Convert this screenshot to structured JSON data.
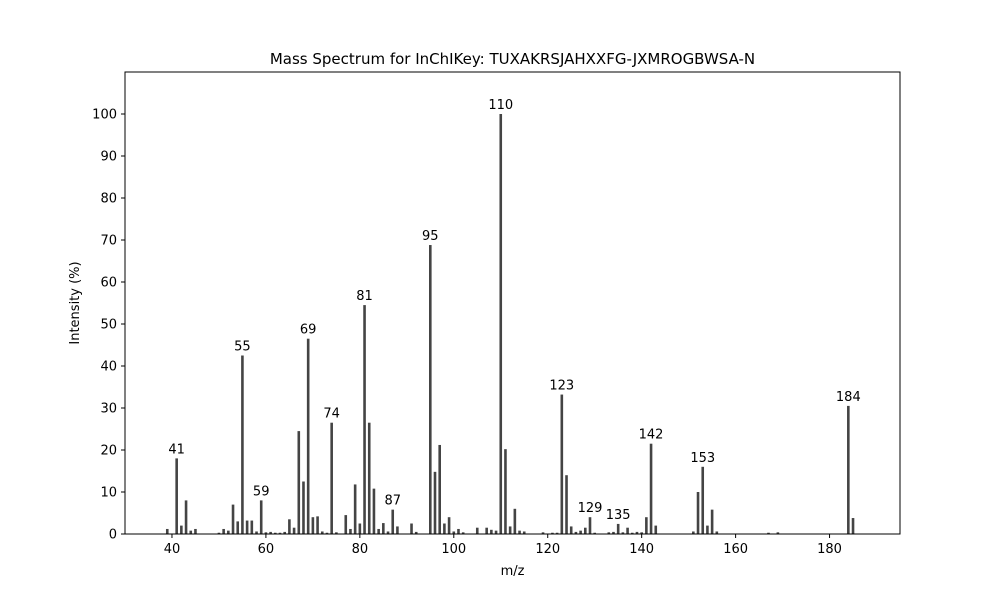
{
  "chart_data": {
    "type": "bar",
    "title": "Mass Spectrum for InChIKey: TUXAKRSJAHXXFG-JXMROGBWSA-N",
    "xlabel": "m/z",
    "ylabel": "Intensity (%)",
    "xlim": [
      30,
      195
    ],
    "ylim": [
      0,
      110
    ],
    "xticks": [
      40,
      60,
      80,
      100,
      120,
      140,
      160,
      180
    ],
    "yticks": [
      0,
      10,
      20,
      30,
      40,
      50,
      60,
      70,
      80,
      90,
      100
    ],
    "grid": false,
    "bar_color": "#444444",
    "x": [
      39,
      41,
      42,
      43,
      44,
      45,
      50,
      51,
      52,
      53,
      54,
      55,
      56,
      57,
      58,
      59,
      60,
      61,
      62,
      63,
      64,
      65,
      66,
      67,
      68,
      69,
      70,
      71,
      72,
      73,
      74,
      75,
      77,
      78,
      79,
      80,
      81,
      82,
      83,
      84,
      85,
      86,
      87,
      88,
      91,
      92,
      95,
      96,
      97,
      98,
      99,
      100,
      101,
      102,
      105,
      107,
      108,
      109,
      110,
      111,
      112,
      113,
      114,
      115,
      119,
      121,
      122,
      123,
      124,
      125,
      126,
      127,
      128,
      129,
      130,
      133,
      134,
      135,
      136,
      137,
      138,
      139,
      140,
      141,
      142,
      143,
      151,
      152,
      153,
      154,
      155,
      156,
      167,
      169,
      184,
      185
    ],
    "values": [
      1.2,
      18,
      2,
      8,
      0.8,
      1.2,
      0.3,
      1.2,
      0.8,
      7,
      3,
      42.5,
      3.2,
      3.2,
      0.6,
      8,
      0.4,
      0.5,
      0.3,
      0.3,
      0.5,
      3.5,
      1.5,
      24.5,
      12.5,
      46.5,
      4,
      4.2,
      0.6,
      0.3,
      26.5,
      0.4,
      4.5,
      1.2,
      11.8,
      2.5,
      54.5,
      26.5,
      10.8,
      1.2,
      2.6,
      0.6,
      5.8,
      1.8,
      2.5,
      0.5,
      68.8,
      14.8,
      21.2,
      2.5,
      4,
      0.6,
      1.2,
      0.4,
      1.5,
      1.5,
      1,
      0.8,
      100,
      20.2,
      1.8,
      6,
      0.8,
      0.6,
      0.4,
      0.3,
      0.3,
      33.2,
      14,
      1.8,
      0.5,
      0.8,
      1.5,
      4,
      0.3,
      0.4,
      0.5,
      2.4,
      0.4,
      1.5,
      0.3,
      0.5,
      0.4,
      4,
      21.5,
      2,
      0.6,
      10,
      16,
      2,
      5.8,
      0.6,
      0.3,
      0.4,
      30.5,
      3.8
    ],
    "annotations": [
      {
        "x": 41,
        "y": 18,
        "text": "41"
      },
      {
        "x": 55,
        "y": 42.5,
        "text": "55"
      },
      {
        "x": 59,
        "y": 8,
        "text": "59"
      },
      {
        "x": 69,
        "y": 46.5,
        "text": "69"
      },
      {
        "x": 74,
        "y": 26.5,
        "text": "74"
      },
      {
        "x": 81,
        "y": 54.5,
        "text": "81"
      },
      {
        "x": 87,
        "y": 5.8,
        "text": "87"
      },
      {
        "x": 95,
        "y": 68.8,
        "text": "95"
      },
      {
        "x": 110,
        "y": 100,
        "text": "110"
      },
      {
        "x": 123,
        "y": 33.2,
        "text": "123"
      },
      {
        "x": 129,
        "y": 4,
        "text": "129"
      },
      {
        "x": 135,
        "y": 2.4,
        "text": "135"
      },
      {
        "x": 142,
        "y": 21.5,
        "text": "142"
      },
      {
        "x": 153,
        "y": 16,
        "text": "153"
      },
      {
        "x": 184,
        "y": 30.5,
        "text": "184"
      }
    ]
  }
}
